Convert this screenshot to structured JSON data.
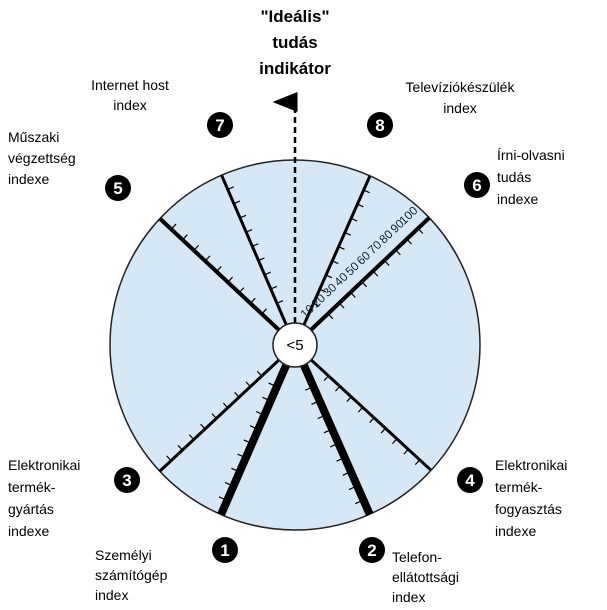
{
  "title": [
    "\"Ideális\"",
    "tudás",
    "indikátor"
  ],
  "center_label": "<5",
  "scale_labels": [
    "10",
    "20",
    "30",
    "40",
    "50",
    "60",
    "70",
    "80",
    "90",
    "100"
  ],
  "axes": [
    {
      "number": "1",
      "label": [
        "Személyi",
        "számítógép",
        "index"
      ]
    },
    {
      "number": "2",
      "label": [
        "Telefon-",
        "ellátottsági",
        "index"
      ]
    },
    {
      "number": "3",
      "label": [
        "Elektronikai",
        "termék-",
        "gyártás",
        "indexe"
      ]
    },
    {
      "number": "4",
      "label": [
        "Elektronikai",
        "termék-",
        "fogyasztás",
        "indexe"
      ]
    },
    {
      "number": "5",
      "label": [
        "Műszaki",
        "végzettség",
        "indexe"
      ]
    },
    {
      "number": "6",
      "label": [
        "Írni-olvasni",
        "tudás",
        "indexe"
      ]
    },
    {
      "number": "7",
      "label": [
        "Internet host",
        "index"
      ]
    },
    {
      "number": "8",
      "label": [
        "Televíziókészülék",
        "index"
      ]
    }
  ]
}
